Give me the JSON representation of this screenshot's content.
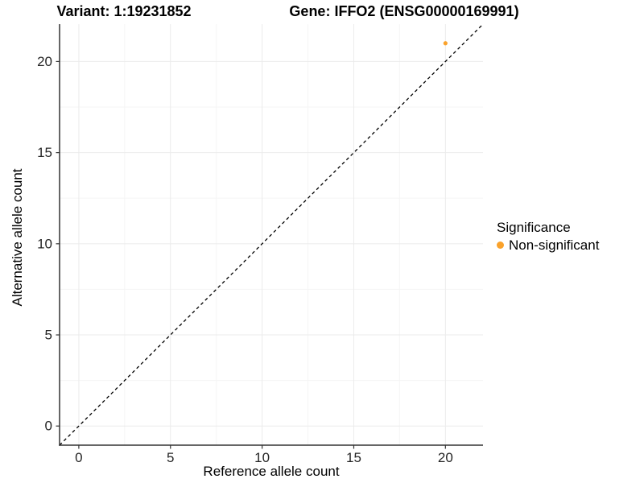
{
  "chart_data": {
    "type": "scatter",
    "title_left": "Variant: 1:19231852",
    "title_right": "Gene: IFFO2 (ENSG00000169991)",
    "xlabel": "Reference allele count",
    "ylabel": "Alternative allele count",
    "xlim": [
      -1.05,
      22.05
    ],
    "ylim": [
      -1.05,
      22.05
    ],
    "x_ticks": [
      0,
      5,
      10,
      15,
      20
    ],
    "y_ticks": [
      0,
      5,
      10,
      15,
      20
    ],
    "x_minor_ticks": [
      2.5,
      7.5,
      12.5,
      17.5
    ],
    "y_minor_ticks": [
      2.5,
      7.5,
      12.5,
      17.5
    ],
    "grid": true,
    "identity_line": {
      "style": "dashed",
      "color": "#000000",
      "from": [
        -1.05,
        -1.05
      ],
      "to": [
        22.05,
        22.05
      ]
    },
    "series": [
      {
        "name": "Non-significant",
        "color": "#FAA22B",
        "point_radius": 2.6,
        "points": [
          {
            "x": 20,
            "y": 21
          }
        ]
      }
    ],
    "legend": {
      "title": "Significance",
      "position": "right",
      "items": [
        {
          "label": "Non-significant",
          "color": "#FAA22B"
        }
      ]
    },
    "colors": {
      "background": "#FFFFFF",
      "major_grid": "#EBEBEB",
      "minor_grid": "#F5F5F5",
      "axis_line": "#333333",
      "tick_label": "#262626",
      "point": "#FAA22B"
    }
  }
}
